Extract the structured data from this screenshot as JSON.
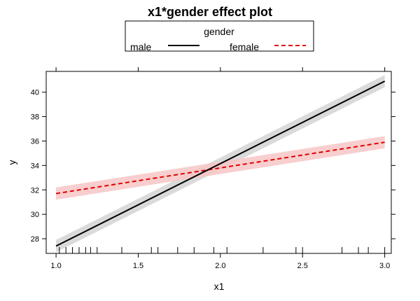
{
  "chart_data": {
    "type": "line",
    "title": "x1*gender effect plot",
    "xlabel": "x1",
    "ylabel": "y",
    "xlim": [
      0.94,
      3.04
    ],
    "ylim": [
      26.8,
      41.7
    ],
    "x_ticks": [
      1.0,
      1.5,
      2.0,
      2.5,
      3.0
    ],
    "x_tick_labels": [
      "1.0",
      "1.5",
      "2.0",
      "2.5",
      "3.0"
    ],
    "y_ticks": [
      28,
      30,
      32,
      34,
      36,
      38,
      40
    ],
    "y_tick_labels": [
      "28",
      "30",
      "32",
      "34",
      "36",
      "38",
      "40"
    ],
    "legend": {
      "title": "gender",
      "placement": "top",
      "entries": [
        "male",
        "female"
      ]
    },
    "series": [
      {
        "name": "male",
        "color": "#000000",
        "band_color": "#d3d3d3",
        "line_style": "solid",
        "x": [
          1.0,
          3.0
        ],
        "y": [
          27.4,
          40.9
        ],
        "lower": [
          26.9,
          40.4
        ],
        "upper": [
          27.9,
          41.4
        ]
      },
      {
        "name": "female",
        "color": "#e00000",
        "band_color": "#f7c6c6",
        "line_style": "dashed",
        "x": [
          1.0,
          3.0
        ],
        "y": [
          31.7,
          35.9
        ],
        "lower": [
          31.2,
          35.4
        ],
        "upper": [
          32.2,
          36.4
        ]
      }
    ],
    "rug_x": [
      1.02,
      1.06,
      1.1,
      1.14,
      1.18,
      1.21,
      1.25,
      1.4,
      1.58,
      1.62,
      1.74,
      1.84,
      1.96,
      2.04,
      2.26,
      2.46,
      2.5,
      2.74,
      2.84,
      2.9,
      3.0
    ],
    "grid": false
  }
}
